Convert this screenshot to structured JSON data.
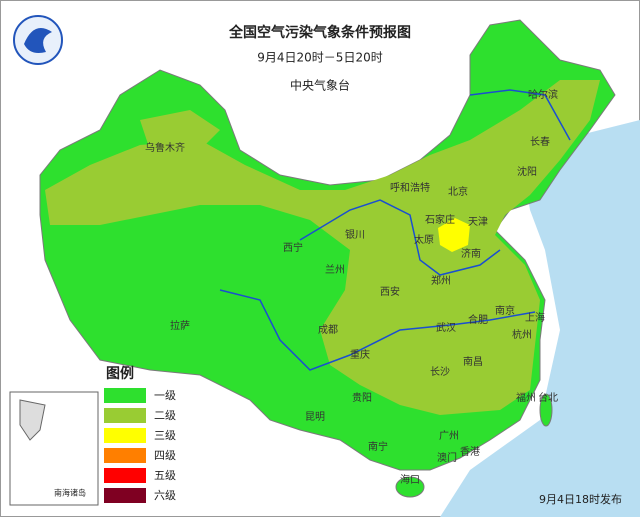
{
  "header": {
    "title": "全国空气污染气象条件预报图",
    "period": "9月4日20时－5日20时",
    "agency": "中央气象台"
  },
  "cities": [
    "乌鲁木齐",
    "呼和浩特",
    "北京",
    "哈尔滨",
    "长春",
    "沈阳",
    "天津",
    "石家庄",
    "太原",
    "济南",
    "银川",
    "西宁",
    "兰州",
    "西安",
    "郑州",
    "拉萨",
    "成都",
    "重庆",
    "武汉",
    "合肥",
    "南京",
    "上海",
    "杭州",
    "长沙",
    "南昌",
    "贵阳",
    "昆明",
    "福州",
    "台北",
    "南宁",
    "广州",
    "香港",
    "澳门",
    "海口"
  ],
  "legend": {
    "title": "图例",
    "items": [
      {
        "label": "一级",
        "color": "#2ee02e"
      },
      {
        "label": "二级",
        "color": "#99cc33"
      },
      {
        "label": "三级",
        "color": "#ffff00"
      },
      {
        "label": "四级",
        "color": "#ff7f00"
      },
      {
        "label": "五级",
        "color": "#ff0000"
      },
      {
        "label": "六级",
        "color": "#7f0022"
      }
    ]
  },
  "inset": {
    "label": "南海诸岛"
  },
  "footer": {
    "release": "9月4日18时发布"
  }
}
